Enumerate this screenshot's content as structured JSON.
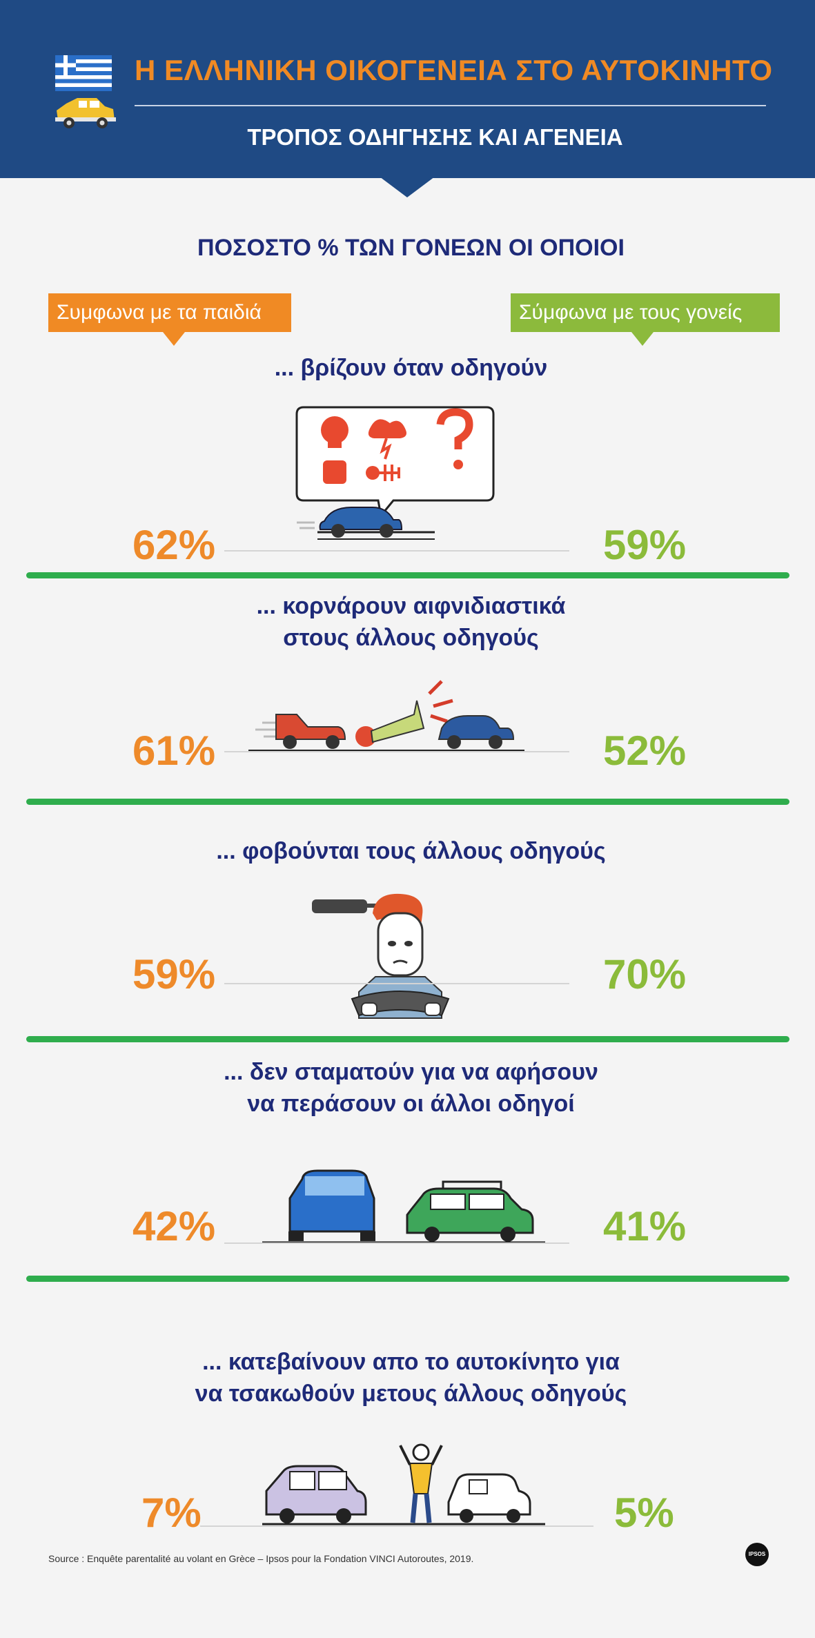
{
  "header": {
    "title": "Η ΕΛΛΗΝΙΚΗ ΟΙΚΟΓΕΝΕΙΑ ΣΤΟ ΑΥΤΟΚΙΝΗΤΟ",
    "subtitle": "ΤΡΟΠΟΣ ΟΔΗΓΗΣΗΣ ΚΑΙ ΑΓΕΝΕΙΑ",
    "flag_icon": "greek-flag-icon",
    "car_icon": "taxi-car-icon"
  },
  "question": "ΠΟΣΟΣΤΟ % ΤΩΝ ΓΟΝΕΩΝ ΟΙ ΟΠΟΙΟΙ",
  "legend": {
    "left": "Συμφωνα με τα παιδιά",
    "right": "Σύμφωνα με τους γονείς"
  },
  "colors": {
    "header_bg": "#1f4a84",
    "title_orange": "#f08a24",
    "children_orange": "#ee8a2a",
    "parents_green": "#8bbb3a",
    "section_text": "#1e2a78",
    "separator_green": "#2fad4d"
  },
  "sections": [
    {
      "line1": "... βρίζουν όταν οδηγούν",
      "line2": "",
      "left": "62%",
      "right": "59%",
      "icon": "swearing-speech-bubble-icon"
    },
    {
      "line1": "... κορνάρουν αιφνιδιαστικά",
      "line2": "στους άλλους οδηγούς",
      "left": "61%",
      "right": "52%",
      "icon": "car-horn-icon"
    },
    {
      "line1": "... φοβούνται τους άλλους οδηγούς",
      "line2": "",
      "left": "59%",
      "right": "70%",
      "icon": "scared-driver-icon"
    },
    {
      "line1": "... δεν σταματούν για να αφήσουν",
      "line2": "να περάσουν οι άλλοι οδηγοί",
      "left": "42%",
      "right": "41%",
      "icon": "cars-not-yielding-icon"
    },
    {
      "line1": "... κατεβαίνουν απο το αυτοκίνητο για",
      "line2": "να τσακωθούν μετους άλλους οδηγούς",
      "left": "7%",
      "right": "5%",
      "icon": "angry-person-between-cars-icon"
    }
  ],
  "source": "Source : Enquête parentalité au volant en Grèce – Ipsos pour la Fondation VINCI Autoroutes, 2019.",
  "badge": "ipsos-logo"
}
